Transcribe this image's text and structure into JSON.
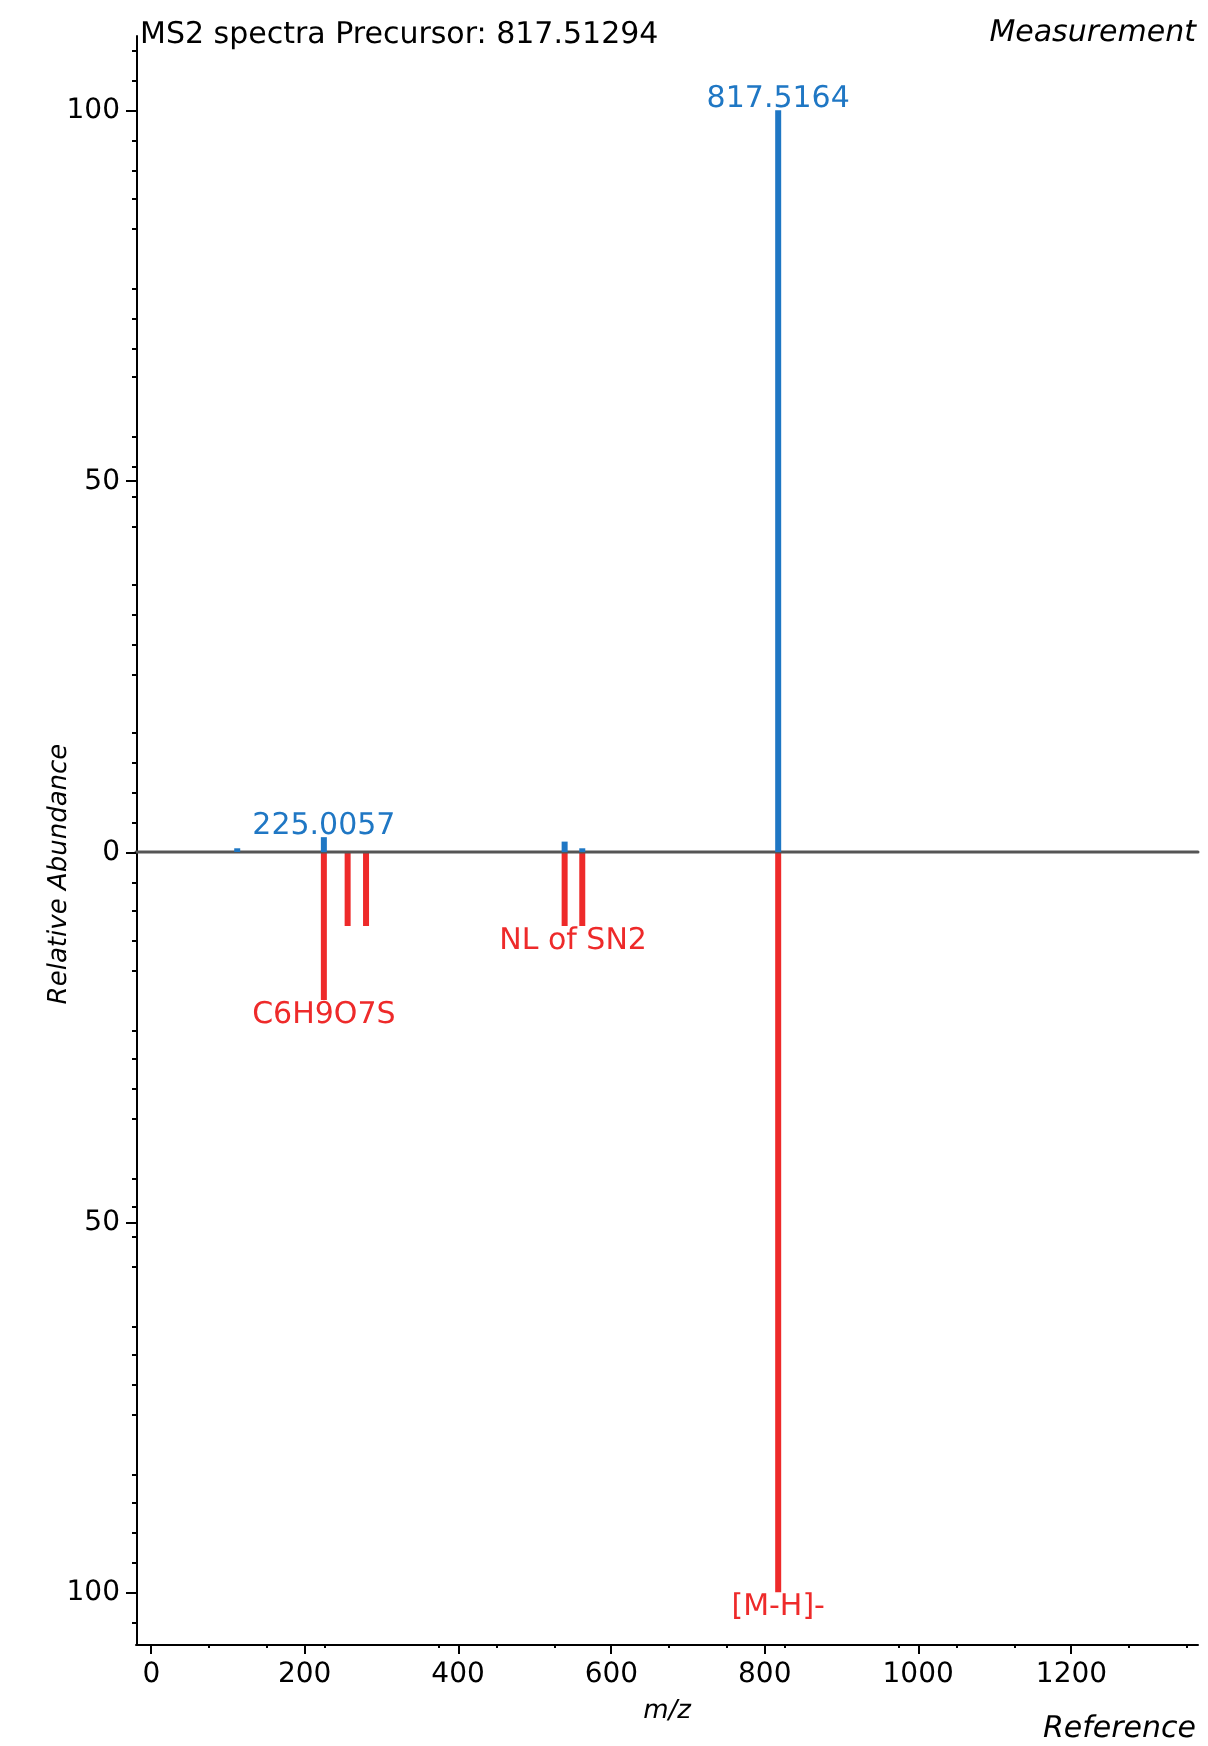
{
  "chart_data": [
    {
      "type": "bar",
      "title": "MS2 spectra Precursor: 817.51294",
      "ylabel": "Relative Abundance",
      "xlim": [
        -20,
        1365
      ],
      "ylim": [
        0,
        110
      ],
      "yticks": [
        0,
        50,
        100
      ],
      "tick_labels": "y",
      "series": [
        {
          "color": "#1f77c4",
          "x": [
            112,
            225,
            539,
            562,
            817.5
          ],
          "values": [
            0.5,
            2,
            1.4,
            0.5,
            100
          ]
        }
      ],
      "annotations": [
        {
          "text": "225.0057",
          "x": 225,
          "y": 2
        },
        {
          "text": "817.5164",
          "x": 817.5,
          "y": 100
        },
        "Measurement"
      ],
      "grid": false
    },
    {
      "type": "bar",
      "xlabel": "m/z",
      "xlim": [
        -20,
        1365
      ],
      "xticks": [
        0,
        200,
        400,
        600,
        800,
        1000,
        1200
      ],
      "ylim": [
        107,
        0
      ],
      "yticks": [
        {
          "value": 0,
          "label": null
        },
        50,
        100
      ],
      "series": [
        {
          "color": "#ee2a2a",
          "x": [
            225,
            256,
            280,
            539,
            562,
            817.5
          ],
          "values": [
            20,
            10,
            10,
            10,
            10,
            100
          ]
        }
      ],
      "annotations": [
        {
          "text": "C6H9O7S",
          "x": 225,
          "y": 20
        },
        {
          "text": "NL of SN2",
          "x": 550,
          "y": 10
        },
        {
          "text": "[M-H]-",
          "x": 817.5,
          "y": 100
        },
        "Reference"
      ],
      "grid": false
    }
  ]
}
